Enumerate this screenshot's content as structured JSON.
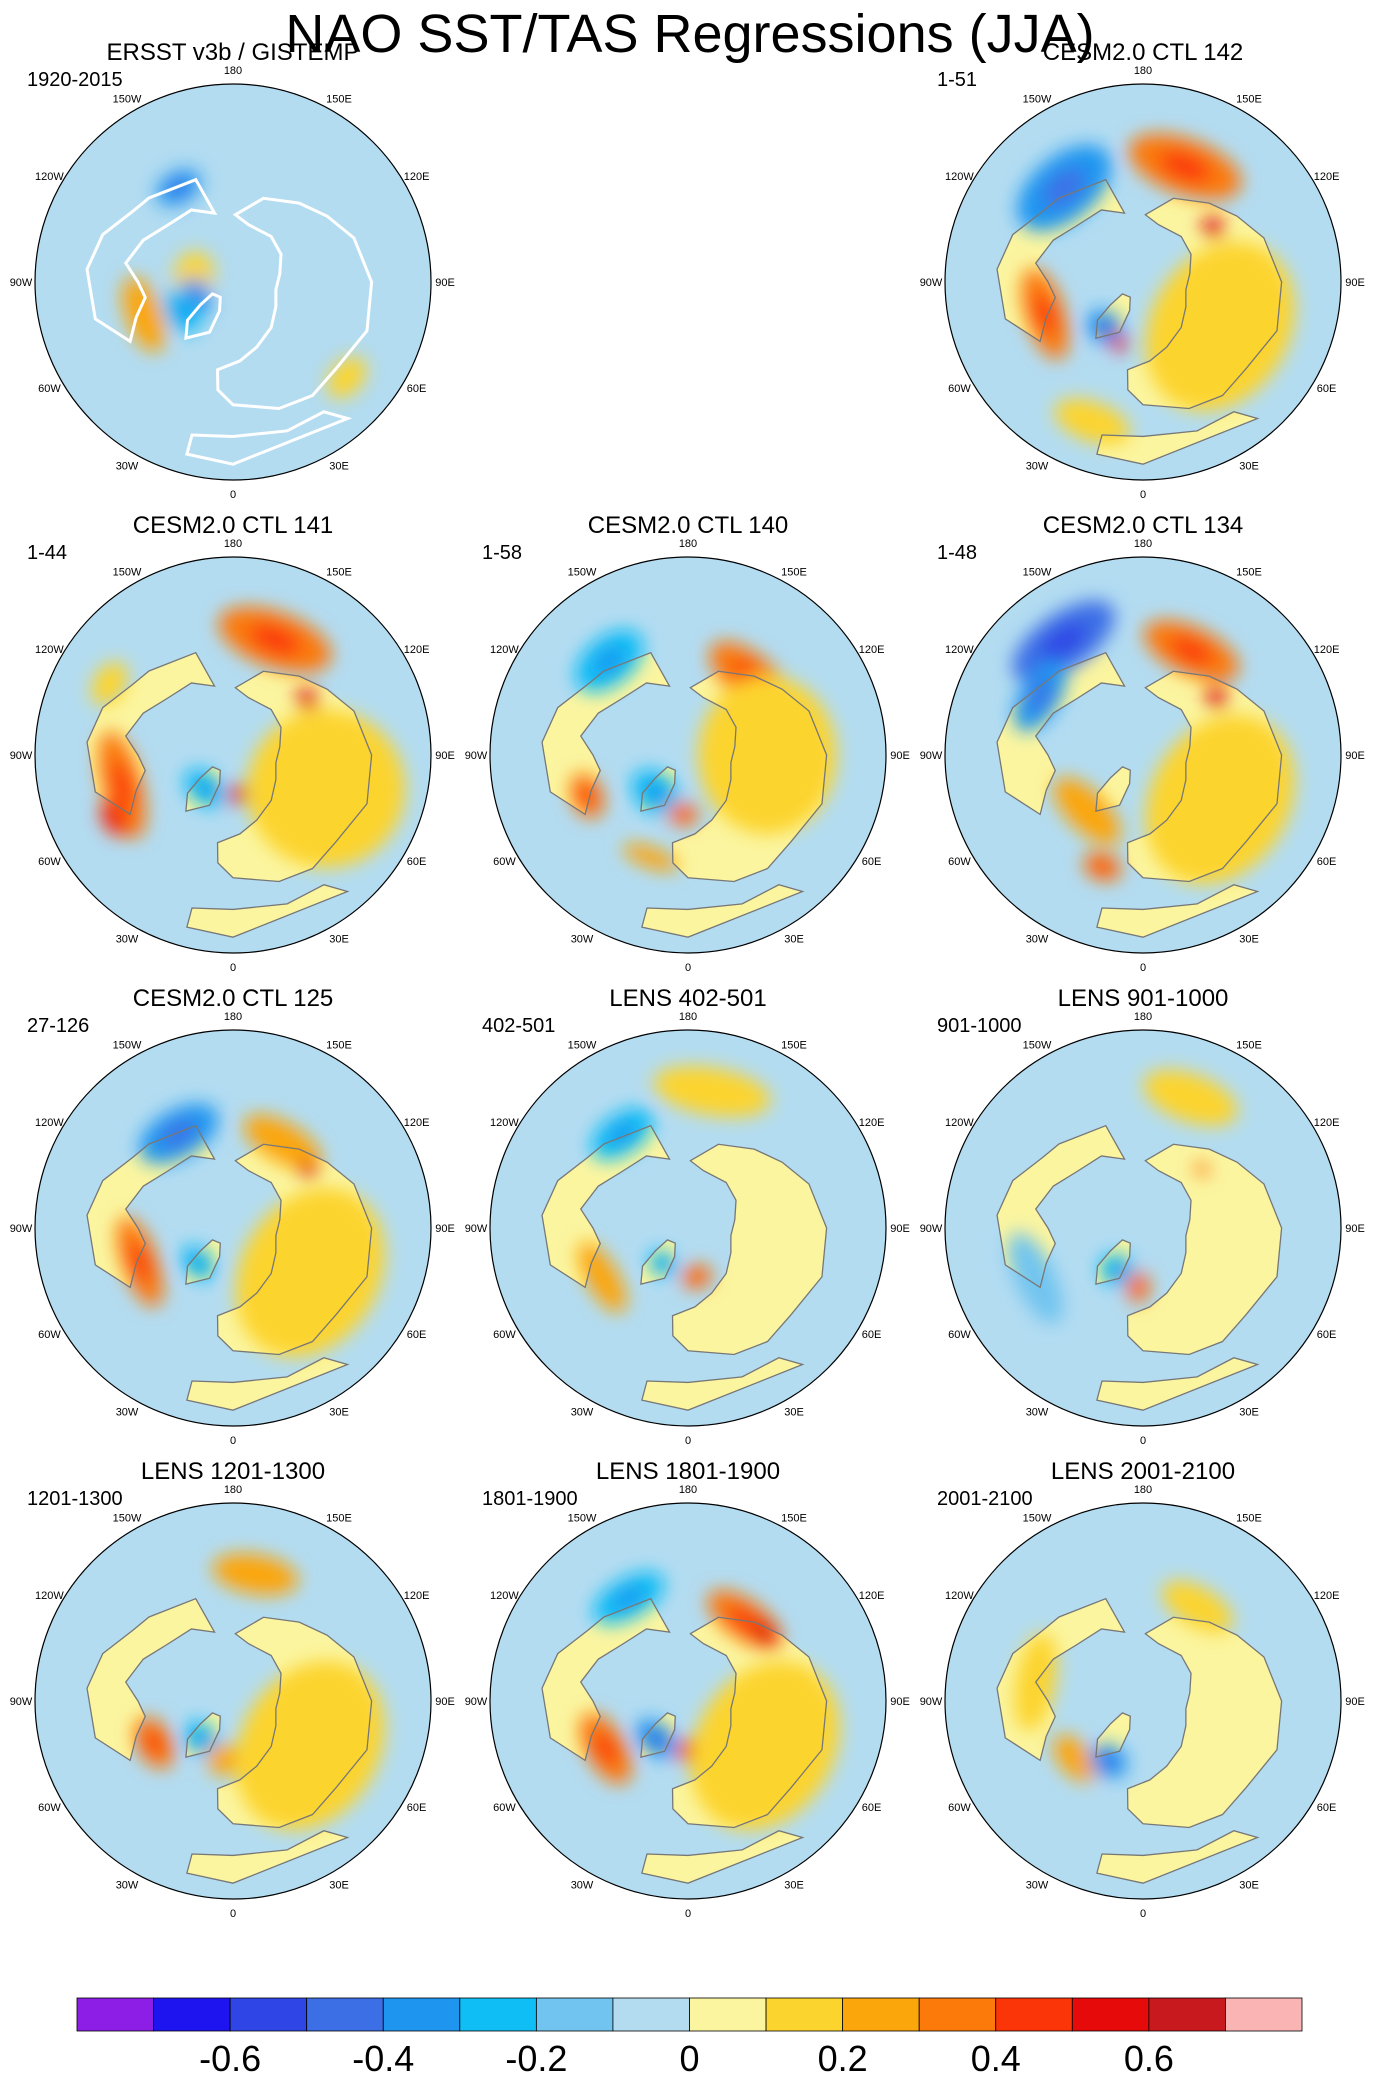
{
  "title": "NAO SST/TAS Regressions (JJA)",
  "chart_data": {
    "type": "heatmap",
    "projection": "north-polar-stereographic",
    "title": "NAO SST/TAS Regressions (JJA)",
    "longitude_labels": [
      "180",
      "150E",
      "120E",
      "90E",
      "60E",
      "30E",
      "0",
      "30W",
      "60W",
      "90W",
      "120W",
      "150W"
    ],
    "colorbar": {
      "levels": [
        -0.7,
        -0.6,
        -0.5,
        -0.4,
        -0.3,
        -0.2,
        -0.1,
        0,
        0.1,
        0.2,
        0.3,
        0.4,
        0.5,
        0.6,
        0.7
      ],
      "colors": [
        "#8c1ee6",
        "#1e14f0",
        "#2f45e6",
        "#3c6fe6",
        "#1e96f0",
        "#0fbef5",
        "#71c4f0",
        "#b3dcf1",
        "#fbf5a0",
        "#fcd42e",
        "#fba60a",
        "#fb7a0a",
        "#fb3508",
        "#e60a0a",
        "#c8191e",
        "#fbb4b4"
      ],
      "tick_labels": [
        "-0.6",
        "-0.4",
        "-0.2",
        "0",
        "0.2",
        "0.4",
        "0.6"
      ]
    },
    "panels": [
      {
        "title": "ERSST v3b / GISTEMP",
        "period": "1920-2015",
        "style": "obs",
        "blobs": [
          {
            "lon": -70,
            "r": 0.48,
            "rx": 0.2,
            "ry": 0.09,
            "v": 0.25
          },
          {
            "lon": -100,
            "r": 0.2,
            "rx": 0.12,
            "ry": 0.1,
            "v": 0.12
          },
          {
            "lon": -68,
            "r": 0.2,
            "rx": 0.1,
            "ry": 0.07,
            "v": -0.4
          },
          {
            "lon": -60,
            "r": 0.3,
            "rx": 0.12,
            "ry": 0.08,
            "v": -0.3
          },
          {
            "lon": -150,
            "r": 0.55,
            "rx": 0.12,
            "ry": 0.08,
            "v": -0.32
          },
          {
            "lon": 50,
            "r": 0.75,
            "rx": 0.12,
            "ry": 0.08,
            "v": 0.12
          }
        ]
      },
      {
        "title": "CESM2.0 CTL 142",
        "period": "1-51",
        "style": "model",
        "blobs": [
          {
            "lon": 160,
            "r": 0.62,
            "rx": 0.3,
            "ry": 0.14,
            "v": 0.3
          },
          {
            "lon": 128,
            "r": 0.45,
            "rx": 0.06,
            "ry": 0.05,
            "v": 0.5
          },
          {
            "lon": -140,
            "r": 0.62,
            "rx": 0.28,
            "ry": 0.16,
            "v": -0.38
          },
          {
            "lon": -72,
            "r": 0.52,
            "rx": 0.24,
            "ry": 0.1,
            "v": 0.3
          },
          {
            "lon": -40,
            "r": 0.3,
            "rx": 0.1,
            "ry": 0.08,
            "v": -0.35
          },
          {
            "lon": -22,
            "r": 0.33,
            "rx": 0.05,
            "ry": 0.04,
            "v": 0.5
          },
          {
            "lon": 60,
            "r": 0.45,
            "rx": 0.45,
            "ry": 0.35,
            "v": 0.12
          },
          {
            "lon": -20,
            "r": 0.75,
            "rx": 0.2,
            "ry": 0.1,
            "v": 0.12
          }
        ]
      },
      {
        "title": "CESM2.0 CTL 141",
        "period": "1-44",
        "style": "model",
        "blobs": [
          {
            "lon": 160,
            "r": 0.62,
            "rx": 0.3,
            "ry": 0.14,
            "v": 0.32
          },
          {
            "lon": 127,
            "r": 0.47,
            "rx": 0.06,
            "ry": 0.05,
            "v": 0.55
          },
          {
            "lon": -75,
            "r": 0.58,
            "rx": 0.28,
            "ry": 0.1,
            "v": 0.35
          },
          {
            "lon": -62,
            "r": 0.68,
            "rx": 0.1,
            "ry": 0.06,
            "v": 0.45
          },
          {
            "lon": -40,
            "r": 0.22,
            "rx": 0.12,
            "ry": 0.08,
            "v": -0.3
          },
          {
            "lon": 5,
            "r": 0.2,
            "rx": 0.05,
            "ry": 0.05,
            "v": 0.5
          },
          {
            "lon": -120,
            "r": 0.72,
            "rx": 0.12,
            "ry": 0.08,
            "v": 0.12
          },
          {
            "lon": 70,
            "r": 0.5,
            "rx": 0.4,
            "ry": 0.4,
            "v": 0.12
          }
        ]
      },
      {
        "title": "CESM2.0 CTL 140",
        "period": "1-58",
        "style": "model",
        "blobs": [
          {
            "lon": 140,
            "r": 0.5,
            "rx": 0.26,
            "ry": 0.12,
            "v": 0.3
          },
          {
            "lon": 125,
            "r": 0.45,
            "rx": 0.06,
            "ry": 0.05,
            "v": 0.5
          },
          {
            "lon": -140,
            "r": 0.62,
            "rx": 0.2,
            "ry": 0.12,
            "v": -0.3
          },
          {
            "lon": -40,
            "r": 0.25,
            "rx": 0.14,
            "ry": 0.1,
            "v": -0.3
          },
          {
            "lon": -68,
            "r": 0.55,
            "rx": 0.12,
            "ry": 0.08,
            "v": 0.3
          },
          {
            "lon": -5,
            "r": 0.3,
            "rx": 0.08,
            "ry": 0.06,
            "v": 0.3
          },
          {
            "lon": -20,
            "r": 0.55,
            "rx": 0.15,
            "ry": 0.05,
            "v": 0.25
          },
          {
            "lon": 90,
            "r": 0.4,
            "rx": 0.4,
            "ry": 0.35,
            "v": 0.12
          }
        ]
      },
      {
        "title": "CESM2.0 CTL 134",
        "period": "1-48",
        "style": "model",
        "blobs": [
          {
            "lon": -145,
            "r": 0.7,
            "rx": 0.3,
            "ry": 0.14,
            "v": -0.5
          },
          {
            "lon": -120,
            "r": 0.6,
            "rx": 0.2,
            "ry": 0.1,
            "v": -0.4
          },
          {
            "lon": 155,
            "r": 0.58,
            "rx": 0.26,
            "ry": 0.12,
            "v": 0.35
          },
          {
            "lon": 128,
            "r": 0.47,
            "rx": 0.06,
            "ry": 0.05,
            "v": 0.5
          },
          {
            "lon": -45,
            "r": 0.4,
            "rx": 0.22,
            "ry": 0.1,
            "v": 0.25
          },
          {
            "lon": -20,
            "r": 0.6,
            "rx": 0.1,
            "ry": 0.07,
            "v": 0.3
          },
          {
            "lon": 60,
            "r": 0.45,
            "rx": 0.45,
            "ry": 0.35,
            "v": 0.12
          }
        ]
      },
      {
        "title": "CESM2.0 CTL 125",
        "period": "27-126",
        "style": "model",
        "blobs": [
          {
            "lon": -150,
            "r": 0.55,
            "rx": 0.22,
            "ry": 0.12,
            "v": -0.35
          },
          {
            "lon": 150,
            "r": 0.5,
            "rx": 0.22,
            "ry": 0.1,
            "v": 0.25
          },
          {
            "lon": 128,
            "r": 0.48,
            "rx": 0.05,
            "ry": 0.04,
            "v": 0.5
          },
          {
            "lon": -70,
            "r": 0.5,
            "rx": 0.24,
            "ry": 0.09,
            "v": 0.3
          },
          {
            "lon": -45,
            "r": 0.25,
            "rx": 0.1,
            "ry": 0.07,
            "v": -0.3
          },
          {
            "lon": 60,
            "r": 0.45,
            "rx": 0.45,
            "ry": 0.35,
            "v": 0.12
          }
        ]
      },
      {
        "title": "LENS 402-501",
        "period": "402-501",
        "style": "model",
        "blobs": [
          {
            "lon": -145,
            "r": 0.58,
            "rx": 0.18,
            "ry": 0.1,
            "v": -0.3
          },
          {
            "lon": -60,
            "r": 0.5,
            "rx": 0.2,
            "ry": 0.08,
            "v": 0.25
          },
          {
            "lon": -35,
            "r": 0.22,
            "rx": 0.08,
            "ry": 0.06,
            "v": -0.3
          },
          {
            "lon": 10,
            "r": 0.25,
            "rx": 0.08,
            "ry": 0.06,
            "v": 0.3
          },
          {
            "lon": 170,
            "r": 0.7,
            "rx": 0.3,
            "ry": 0.12,
            "v": 0.12
          }
        ]
      },
      {
        "title": "LENS 901-1000",
        "period": "901-1000",
        "style": "model",
        "blobs": [
          {
            "lon": -30,
            "r": 0.25,
            "rx": 0.1,
            "ry": 0.08,
            "v": -0.3
          },
          {
            "lon": -5,
            "r": 0.3,
            "rx": 0.06,
            "ry": 0.08,
            "v": 0.3
          },
          {
            "lon": 135,
            "r": 0.42,
            "rx": 0.04,
            "ry": 0.03,
            "v": 0.35
          },
          {
            "lon": -65,
            "r": 0.6,
            "rx": 0.25,
            "ry": 0.1,
            "v": -0.15
          },
          {
            "lon": 160,
            "r": 0.7,
            "rx": 0.25,
            "ry": 0.12,
            "v": 0.12
          }
        ]
      },
      {
        "title": "LENS 1201-1300",
        "period": "1201-1300",
        "style": "model",
        "blobs": [
          {
            "lon": 170,
            "r": 0.65,
            "rx": 0.22,
            "ry": 0.1,
            "v": 0.2
          },
          {
            "lon": -62,
            "r": 0.45,
            "rx": 0.14,
            "ry": 0.09,
            "v": 0.3
          },
          {
            "lon": -40,
            "r": 0.25,
            "rx": 0.1,
            "ry": 0.08,
            "v": -0.3
          },
          {
            "lon": -10,
            "r": 0.3,
            "rx": 0.08,
            "ry": 0.08,
            "v": 0.25
          },
          {
            "lon": 60,
            "r": 0.45,
            "rx": 0.45,
            "ry": 0.35,
            "v": 0.12
          }
        ]
      },
      {
        "title": "LENS 1801-1900",
        "period": "1801-1900",
        "style": "model",
        "blobs": [
          {
            "lon": 145,
            "r": 0.5,
            "rx": 0.22,
            "ry": 0.1,
            "v": 0.3
          },
          {
            "lon": 132,
            "r": 0.52,
            "rx": 0.08,
            "ry": 0.05,
            "v": 0.55
          },
          {
            "lon": -150,
            "r": 0.6,
            "rx": 0.2,
            "ry": 0.1,
            "v": -0.3
          },
          {
            "lon": -60,
            "r": 0.48,
            "rx": 0.2,
            "ry": 0.1,
            "v": 0.35
          },
          {
            "lon": -40,
            "r": 0.25,
            "rx": 0.12,
            "ry": 0.08,
            "v": -0.35
          },
          {
            "lon": 0,
            "r": 0.25,
            "rx": 0.06,
            "ry": 0.06,
            "v": 0.45
          },
          {
            "lon": 60,
            "r": 0.45,
            "rx": 0.45,
            "ry": 0.35,
            "v": 0.12
          }
        ]
      },
      {
        "title": "LENS 2001-2100",
        "period": "2001-2100",
        "style": "model",
        "blobs": [
          {
            "lon": -50,
            "r": 0.45,
            "rx": 0.14,
            "ry": 0.08,
            "v": 0.25
          },
          {
            "lon": -30,
            "r": 0.35,
            "rx": 0.1,
            "ry": 0.08,
            "v": -0.35
          },
          {
            "lon": 150,
            "r": 0.55,
            "rx": 0.2,
            "ry": 0.1,
            "v": 0.15
          },
          {
            "lon": -100,
            "r": 0.55,
            "rx": 0.25,
            "ry": 0.1,
            "v": 0.12
          }
        ]
      }
    ]
  }
}
